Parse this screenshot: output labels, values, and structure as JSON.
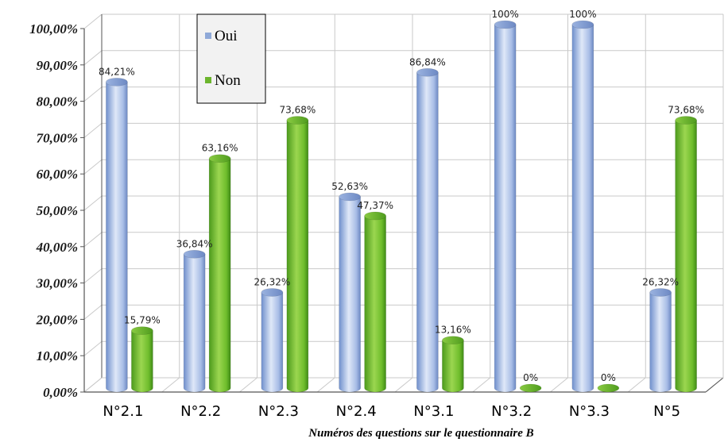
{
  "chart_data": {
    "type": "bar",
    "categories": [
      "N°2.1",
      "N°2.2",
      "N°2.3",
      "N°2.4",
      "N°3.1",
      "N°3.2",
      "N°3.3",
      "N°5"
    ],
    "series": [
      {
        "name": "Oui",
        "values": [
          84.21,
          36.84,
          26.32,
          52.63,
          86.84,
          100,
          100,
          26.32
        ],
        "labels": [
          "84,21%",
          "36,84%",
          "26,32%",
          "52,63%",
          "86,84%",
          "100%",
          "100%",
          "26,32%"
        ]
      },
      {
        "name": "Non",
        "values": [
          15.79,
          63.16,
          73.68,
          47.37,
          13.16,
          0,
          0,
          73.68
        ],
        "labels": [
          "15,79%",
          "63,16%",
          "73,68%",
          "47,37%",
          "13,16%",
          "0%",
          "0%",
          "73,68%"
        ]
      }
    ],
    "yticks": [
      "0,00%",
      "10,00%",
      "20,00%",
      "30,00%",
      "40,00%",
      "50,00%",
      "60,00%",
      "70,00%",
      "80,00%",
      "90,00%",
      "100,00%"
    ],
    "xlabel": "Numéros des questions  sur le questionnaire B",
    "ylabel": "",
    "ylim": [
      0,
      100
    ],
    "grid": true,
    "legend": "top-left",
    "colors": {
      "oui": "#8fa9d8",
      "oui_light": "#eef3fb",
      "oui_dark": "#5f7cb8",
      "non": "#6cb52d",
      "non_light": "#b5e06a",
      "non_dark": "#3d7f15",
      "grid": "#c9c9c9",
      "axis": "#555555"
    }
  }
}
